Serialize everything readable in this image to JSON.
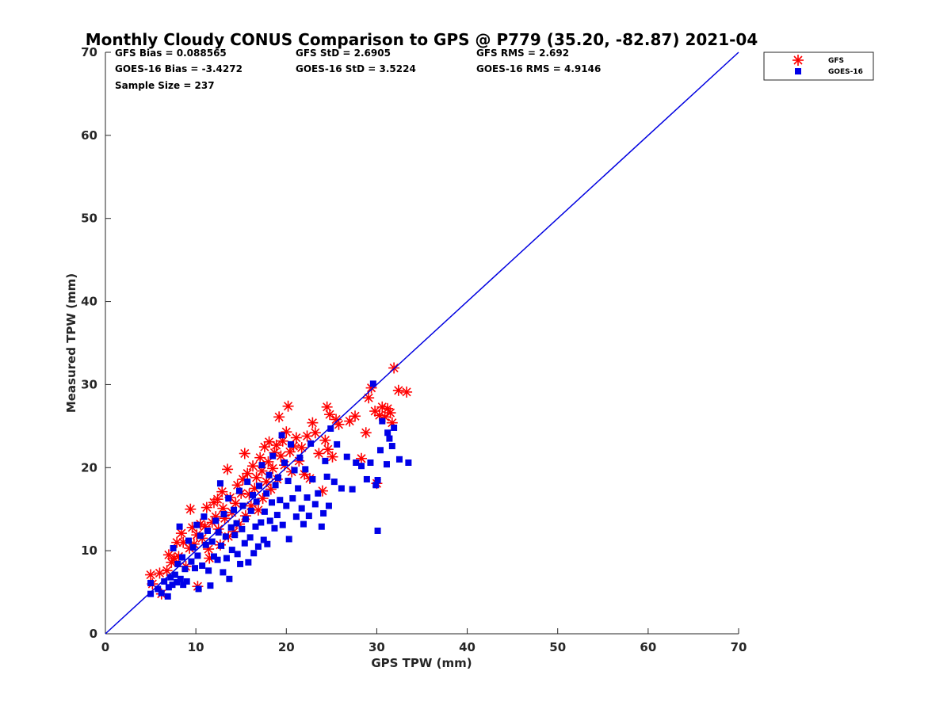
{
  "chart_data": {
    "type": "scatter",
    "title": "Monthly Cloudy CONUS Comparison to GPS @ P779 (35.20, -82.87) 2021-04",
    "xlabel": "GPS TPW (mm)",
    "ylabel": "Measured TPW (mm)",
    "xlim": [
      0,
      70
    ],
    "ylim": [
      0,
      70
    ],
    "xticks": [
      0,
      10,
      20,
      30,
      40,
      50,
      60,
      70
    ],
    "yticks": [
      0,
      10,
      20,
      30,
      40,
      50,
      60,
      70
    ],
    "grid": false,
    "legend_position": "outside top-right",
    "stats": [
      [
        "GFS Bias = 0.088565",
        "GFS StD = 2.6905",
        "GFS RMS = 2.692"
      ],
      [
        "GOES-16 Bias = -3.4272",
        "GOES-16 StD = 3.5224",
        "GOES-16 RMS = 4.9146"
      ],
      [
        "Sample Size = 237"
      ]
    ],
    "reference_line": {
      "x": [
        0,
        70
      ],
      "y": [
        0,
        70
      ],
      "color": "#0000e0"
    },
    "series": [
      {
        "name": "GFS",
        "marker": "asterisk",
        "color": "#ff0000",
        "points": [
          [
            5,
            7.1
          ],
          [
            5.2,
            6
          ],
          [
            6,
            7.3
          ],
          [
            6.2,
            4.8
          ],
          [
            6.8,
            7.6
          ],
          [
            7,
            9.5
          ],
          [
            7.3,
            8.6
          ],
          [
            7.6,
            9.1
          ],
          [
            7.9,
            11
          ],
          [
            8.1,
            9.3
          ],
          [
            8.4,
            12.1
          ],
          [
            8.6,
            11
          ],
          [
            8.9,
            8.1
          ],
          [
            9.3,
            10.3
          ],
          [
            9.4,
            15
          ],
          [
            9.6,
            12.8
          ],
          [
            9.8,
            10.8
          ],
          [
            10.1,
            11.9
          ],
          [
            10.2,
            5.7
          ],
          [
            10.5,
            13.2
          ],
          [
            10.7,
            11.5
          ],
          [
            11,
            12.9
          ],
          [
            11.2,
            15.2
          ],
          [
            11.4,
            10.2
          ],
          [
            11.5,
            9.1
          ],
          [
            11.8,
            13.4
          ],
          [
            12,
            15.8
          ],
          [
            12.2,
            14.1
          ],
          [
            12.4,
            16.2
          ],
          [
            12.5,
            12.6
          ],
          [
            12.7,
            10.7
          ],
          [
            12.9,
            17.1
          ],
          [
            13,
            15.1
          ],
          [
            13.2,
            13.9
          ],
          [
            13.5,
            19.8
          ],
          [
            13.6,
            11.7
          ],
          [
            13.8,
            16.4
          ],
          [
            14,
            14.6
          ],
          [
            14.2,
            12.3
          ],
          [
            14.4,
            15.7
          ],
          [
            14.6,
            17.9
          ],
          [
            14.8,
            13.2
          ],
          [
            15,
            16.9
          ],
          [
            15.2,
            18.6
          ],
          [
            15.4,
            21.7
          ],
          [
            15.5,
            14.2
          ],
          [
            15.7,
            19.3
          ],
          [
            15.9,
            16.8
          ],
          [
            16.1,
            15.4
          ],
          [
            16.3,
            20.2
          ],
          [
            16.5,
            17.5
          ],
          [
            16.7,
            18.8
          ],
          [
            16.9,
            14.9
          ],
          [
            17.1,
            21.2
          ],
          [
            17.3,
            19.6
          ],
          [
            17.4,
            16.3
          ],
          [
            17.6,
            22.5
          ],
          [
            17.8,
            18.3
          ],
          [
            18,
            20.7
          ],
          [
            18.1,
            23.1
          ],
          [
            18.3,
            17.4
          ],
          [
            18.5,
            19.9
          ],
          [
            18.7,
            21.8
          ],
          [
            18.9,
            22.7
          ],
          [
            19,
            18.6
          ],
          [
            19.2,
            26.1
          ],
          [
            19.4,
            21.4
          ],
          [
            19.6,
            23.2
          ],
          [
            19.8,
            20.3
          ],
          [
            20,
            24.3
          ],
          [
            20.2,
            27.4
          ],
          [
            20.4,
            21.9
          ],
          [
            20.6,
            19.5
          ],
          [
            20.8,
            22.6
          ],
          [
            21.1,
            23.6
          ],
          [
            21.4,
            20.8
          ],
          [
            21.7,
            22.4
          ],
          [
            22,
            19.2
          ],
          [
            22.3,
            23.8
          ],
          [
            22.6,
            18.7
          ],
          [
            22.9,
            25.4
          ],
          [
            23.2,
            24.2
          ],
          [
            23.6,
            21.7
          ],
          [
            24,
            17.2
          ],
          [
            24.3,
            23.3
          ],
          [
            24.5,
            27.3
          ],
          [
            24.8,
            26.4
          ],
          [
            24.6,
            22.2
          ],
          [
            25.1,
            21.3
          ],
          [
            25.5,
            25.8
          ],
          [
            25.8,
            25.2
          ],
          [
            27,
            25.6
          ],
          [
            27.6,
            26.2
          ],
          [
            28.3,
            21.1
          ],
          [
            28.8,
            24.2
          ],
          [
            29.1,
            28.4
          ],
          [
            29.4,
            29.6
          ],
          [
            29.8,
            26.8
          ],
          [
            30,
            18.1
          ],
          [
            30.3,
            26.3
          ],
          [
            30.6,
            27.3
          ],
          [
            30.9,
            26.1
          ],
          [
            31.2,
            27.1
          ],
          [
            31.5,
            26.6
          ],
          [
            31.7,
            25.4
          ],
          [
            31.9,
            32
          ],
          [
            32.4,
            29.3
          ],
          [
            33.3,
            29.1
          ]
        ]
      },
      {
        "name": "GOES-16",
        "marker": "square",
        "color": "#0000e8",
        "points": [
          [
            5,
            6.1
          ],
          [
            5,
            4.8
          ],
          [
            5.8,
            5.4
          ],
          [
            6.2,
            4.9
          ],
          [
            6.5,
            6.3
          ],
          [
            6.9,
            4.5
          ],
          [
            7,
            5.6
          ],
          [
            7.2,
            6.8
          ],
          [
            7.4,
            5.9
          ],
          [
            7.5,
            10.3
          ],
          [
            7.7,
            7.1
          ],
          [
            7.9,
            6.2
          ],
          [
            8,
            8.4
          ],
          [
            8.2,
            12.9
          ],
          [
            8.3,
            6.6
          ],
          [
            8.5,
            9.2
          ],
          [
            8.6,
            5.9
          ],
          [
            8.8,
            7.8
          ],
          [
            9,
            6.3
          ],
          [
            9.2,
            11.2
          ],
          [
            9.5,
            8.7
          ],
          [
            9.7,
            10.4
          ],
          [
            9.9,
            7.9
          ],
          [
            10.1,
            13.1
          ],
          [
            10.2,
            9.4
          ],
          [
            10.3,
            5.4
          ],
          [
            10.5,
            11.8
          ],
          [
            10.7,
            8.2
          ],
          [
            10.9,
            14.1
          ],
          [
            11.1,
            10.7
          ],
          [
            11.3,
            12.4
          ],
          [
            11.4,
            7.6
          ],
          [
            11.6,
            5.8
          ],
          [
            11.8,
            11.1
          ],
          [
            12,
            9.3
          ],
          [
            12.2,
            13.6
          ],
          [
            12.4,
            8.9
          ],
          [
            12.5,
            12.2
          ],
          [
            12.7,
            18.1
          ],
          [
            12.8,
            10.6
          ],
          [
            13,
            7.4
          ],
          [
            13.1,
            14.4
          ],
          [
            13.3,
            11.7
          ],
          [
            13.4,
            9.1
          ],
          [
            13.6,
            16.3
          ],
          [
            13.7,
            6.6
          ],
          [
            13.9,
            12.8
          ],
          [
            14,
            10.1
          ],
          [
            14.2,
            14.9
          ],
          [
            14.3,
            11.9
          ],
          [
            14.5,
            13.3
          ],
          [
            14.6,
            9.6
          ],
          [
            14.8,
            17.2
          ],
          [
            14.9,
            8.4
          ],
          [
            15.1,
            12.6
          ],
          [
            15.2,
            15.4
          ],
          [
            15.4,
            10.9
          ],
          [
            15.5,
            13.8
          ],
          [
            15.7,
            18.3
          ],
          [
            15.8,
            8.6
          ],
          [
            16,
            11.6
          ],
          [
            16.1,
            14.8
          ],
          [
            16.3,
            16.7
          ],
          [
            16.4,
            9.7
          ],
          [
            16.6,
            12.9
          ],
          [
            16.7,
            15.9
          ],
          [
            16.9,
            10.5
          ],
          [
            17,
            17.8
          ],
          [
            17.2,
            13.4
          ],
          [
            17.3,
            20.3
          ],
          [
            17.5,
            11.3
          ],
          [
            17.6,
            14.7
          ],
          [
            17.8,
            16.9
          ],
          [
            17.9,
            10.8
          ],
          [
            18.1,
            19.1
          ],
          [
            18.2,
            13.6
          ],
          [
            18.4,
            15.8
          ],
          [
            18.5,
            21.4
          ],
          [
            18.7,
            12.7
          ],
          [
            18.8,
            17.9
          ],
          [
            19,
            14.3
          ],
          [
            19.1,
            18.8
          ],
          [
            19.3,
            16.1
          ],
          [
            19.5,
            23.9
          ],
          [
            19.6,
            13.1
          ],
          [
            19.8,
            20.6
          ],
          [
            20,
            15.4
          ],
          [
            20.2,
            18.4
          ],
          [
            20.3,
            11.4
          ],
          [
            20.5,
            22.8
          ],
          [
            20.7,
            16.3
          ],
          [
            20.9,
            19.7
          ],
          [
            21.1,
            14.1
          ],
          [
            21.3,
            17.5
          ],
          [
            21.5,
            21.2
          ],
          [
            21.7,
            15.1
          ],
          [
            21.9,
            13.2
          ],
          [
            22.1,
            19.8
          ],
          [
            22.3,
            16.4
          ],
          [
            22.5,
            14.2
          ],
          [
            22.7,
            22.9
          ],
          [
            22.9,
            18.6
          ],
          [
            23.2,
            15.6
          ],
          [
            23.5,
            16.9
          ],
          [
            23.9,
            12.9
          ],
          [
            24.1,
            14.5
          ],
          [
            24.3,
            20.8
          ],
          [
            24.5,
            18.9
          ],
          [
            24.7,
            15.4
          ],
          [
            24.9,
            24.7
          ],
          [
            25.3,
            18.3
          ],
          [
            25.6,
            22.8
          ],
          [
            26.1,
            17.5
          ],
          [
            26.7,
            21.3
          ],
          [
            27.3,
            17.4
          ],
          [
            27.7,
            20.6
          ],
          [
            28.3,
            20.2
          ],
          [
            28.9,
            18.6
          ],
          [
            29.3,
            20.6
          ],
          [
            29.6,
            30.1
          ],
          [
            29.9,
            17.9
          ],
          [
            30.1,
            18.5
          ],
          [
            30.1,
            12.4
          ],
          [
            30.4,
            22.1
          ],
          [
            30.6,
            25.6
          ],
          [
            31.1,
            20.4
          ],
          [
            31.2,
            24.2
          ],
          [
            31.4,
            23.5
          ],
          [
            31.7,
            22.6
          ],
          [
            31.9,
            24.8
          ],
          [
            32.5,
            21
          ],
          [
            33.5,
            20.6
          ]
        ]
      }
    ]
  }
}
